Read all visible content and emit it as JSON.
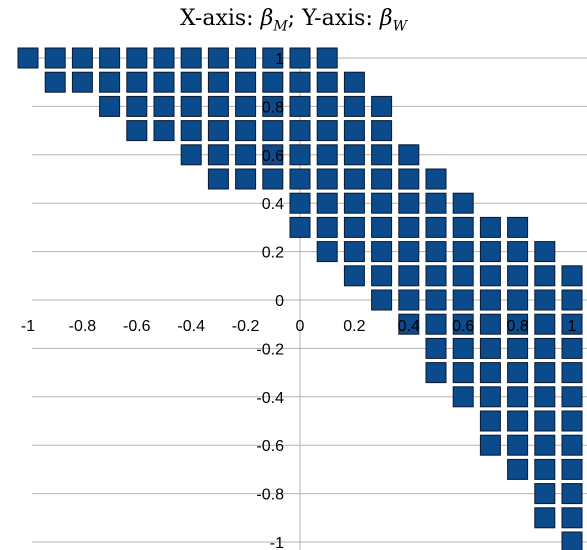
{
  "chart_data": {
    "type": "scatter",
    "title_parts": {
      "x_prefix": "X-axis: ",
      "x_symbol": "β",
      "x_sub": "M",
      "sep": "; ",
      "y_prefix": "Y-axis: ",
      "y_symbol": "β",
      "y_sub": "W"
    },
    "xlim": [
      -1,
      1
    ],
    "ylim": [
      -1,
      1
    ],
    "step": 0.1,
    "x_ticks": [
      -1,
      -0.8,
      -0.6,
      -0.4,
      -0.2,
      0,
      0.2,
      0.4,
      0.6,
      0.8,
      1
    ],
    "x_tick_labels": [
      "-1",
      "-0.8",
      "-0.6",
      "-0.4",
      "-0.2",
      "0",
      "0.2",
      "0.4",
      "0.6",
      "0.8",
      "1"
    ],
    "y_ticks": [
      1,
      0.8,
      0.6,
      0.4,
      0.2,
      0,
      -0.2,
      -0.4,
      -0.6,
      -0.8,
      -1
    ],
    "y_tick_labels": [
      "1",
      "0.8",
      "0.6",
      "0.4",
      "0.2",
      "0",
      "-0.2",
      "-0.4",
      "-0.6",
      "-0.8",
      "-1"
    ],
    "grid": "horizontal",
    "marker": "square",
    "marker_color": "#0b4a8b",
    "marker_edge": "#0a1a33",
    "rows": [
      {
        "y": 1.0,
        "x_min": -1.0,
        "x_max": 0.1
      },
      {
        "y": 0.9,
        "x_min": -0.9,
        "x_max": 0.2
      },
      {
        "y": 0.8,
        "x_min": -0.7,
        "x_max": 0.3
      },
      {
        "y": 0.7,
        "x_min": -0.6,
        "x_max": 0.3
      },
      {
        "y": 0.6,
        "x_min": -0.4,
        "x_max": 0.4
      },
      {
        "y": 0.5,
        "x_min": -0.3,
        "x_max": 0.5
      },
      {
        "y": 0.4,
        "x_min": 0.0,
        "x_max": 0.6
      },
      {
        "y": 0.3,
        "x_min": 0.0,
        "x_max": 0.8
      },
      {
        "y": 0.2,
        "x_min": 0.1,
        "x_max": 0.9
      },
      {
        "y": 0.1,
        "x_min": 0.2,
        "x_max": 1.0
      },
      {
        "y": 0.0,
        "x_min": 0.3,
        "x_max": 1.0
      },
      {
        "y": -0.1,
        "x_min": 0.4,
        "x_max": 1.0
      },
      {
        "y": -0.2,
        "x_min": 0.5,
        "x_max": 1.0
      },
      {
        "y": -0.3,
        "x_min": 0.5,
        "x_max": 1.0
      },
      {
        "y": -0.4,
        "x_min": 0.6,
        "x_max": 1.0
      },
      {
        "y": -0.5,
        "x_min": 0.7,
        "x_max": 1.0
      },
      {
        "y": -0.6,
        "x_min": 0.7,
        "x_max": 1.0
      },
      {
        "y": -0.7,
        "x_min": 0.8,
        "x_max": 1.0
      },
      {
        "y": -0.8,
        "x_min": 0.9,
        "x_max": 1.0
      },
      {
        "y": -0.9,
        "x_min": 0.9,
        "x_max": 1.0
      },
      {
        "y": -1.0,
        "x_min": 1.0,
        "x_max": 1.0
      }
    ]
  }
}
